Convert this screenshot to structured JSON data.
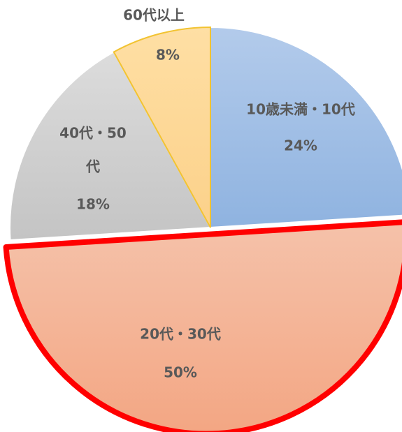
{
  "chart_data": {
    "type": "pie",
    "title": "",
    "legend": "none",
    "start_angle_deg": 0,
    "direction": "clockwise",
    "slices": [
      {
        "name": "10歳未満・10代",
        "value": 24,
        "value_label": "24%",
        "label_lines": [
          "10歳未満・10代"
        ],
        "color_top": "#b3cbeb",
        "color_bottom": "#8fb3e0",
        "highlighted": false
      },
      {
        "name": "20代・30代",
        "value": 50,
        "value_label": "50%",
        "label_lines": [
          "20代・30代"
        ],
        "color_top": "#f5c2aa",
        "color_bottom": "#f3a683",
        "highlighted": true
      },
      {
        "name": "40代・50代",
        "value": 18,
        "value_label": "18%",
        "label_lines": [
          "40代・50",
          "代"
        ],
        "color_top": "#dcdcdc",
        "color_bottom": "#c4c4c4",
        "highlighted": false
      },
      {
        "name": "60代以上",
        "value": 8,
        "value_label": "8%",
        "label_lines": [
          "60代以上"
        ],
        "color_top": "#fedfa4",
        "color_bottom": "#fcd18a",
        "highlighted": false
      }
    ],
    "highlight_color": "#ff0000",
    "label_color": "#595959"
  }
}
